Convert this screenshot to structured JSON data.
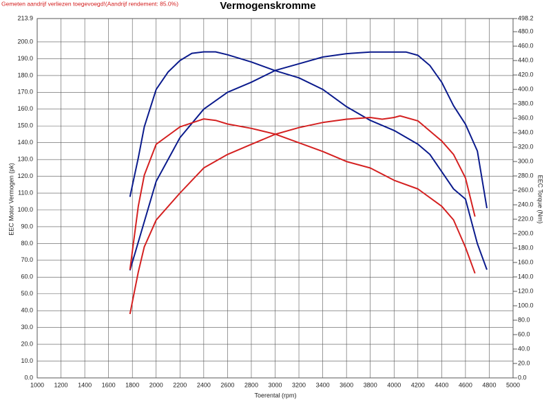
{
  "chart_data": {
    "type": "line",
    "title": "Vermogenskromme",
    "note": "Gemeten aandrijf verliezen toegevoegd!(Aandrijf rendement: 85.0%)",
    "xlabel": "Toerental (rpm)",
    "ylabel": "EEC Motor Vermogen (pk)",
    "y2label": "EEC Torque (Nm)",
    "xlim": [
      1000,
      5000
    ],
    "xticks": [
      1000,
      1200,
      1400,
      1600,
      1800,
      2000,
      2200,
      2400,
      2600,
      2800,
      3000,
      3200,
      3400,
      3600,
      3800,
      4000,
      4200,
      4400,
      4600,
      4800,
      5000
    ],
    "ylim": [
      0,
      213.9
    ],
    "yticks": [
      {
        "value": 0,
        "label": "0.0"
      },
      {
        "value": 10,
        "label": "10.0"
      },
      {
        "value": 20,
        "label": "20.0"
      },
      {
        "value": 30,
        "label": "30.0"
      },
      {
        "value": 40,
        "label": "40.0"
      },
      {
        "value": 50,
        "label": "50.0"
      },
      {
        "value": 60,
        "label": "60.0"
      },
      {
        "value": 70,
        "label": "70.0"
      },
      {
        "value": 80,
        "label": "80.0"
      },
      {
        "value": 90,
        "label": "90.0"
      },
      {
        "value": 100,
        "label": "100.0"
      },
      {
        "value": 110,
        "label": "110.0"
      },
      {
        "value": 120,
        "label": "120.0"
      },
      {
        "value": 130,
        "label": "130.0"
      },
      {
        "value": 140,
        "label": "140.0"
      },
      {
        "value": 150,
        "label": "150.0"
      },
      {
        "value": 160,
        "label": "160.0"
      },
      {
        "value": 170,
        "label": "170.0"
      },
      {
        "value": 180,
        "label": "180.0"
      },
      {
        "value": 190,
        "label": "190.0"
      },
      {
        "value": 200,
        "label": "200.0"
      },
      213.9
    ],
    "y2lim": [
      0,
      498.2
    ],
    "y2ticks": [
      {
        "value": 0,
        "label": "0.0"
      },
      {
        "value": 20,
        "label": "20.0"
      },
      {
        "value": 40,
        "label": "40.0"
      },
      {
        "value": 60,
        "label": "60.0"
      },
      {
        "value": 80,
        "label": "80.0"
      },
      {
        "value": 100,
        "label": "100.0"
      },
      {
        "value": 120,
        "label": "120.0"
      },
      {
        "value": 140,
        "label": "140.0"
      },
      {
        "value": 160,
        "label": "160.0"
      },
      {
        "value": 180,
        "label": "180.0"
      },
      {
        "value": 200,
        "label": "200.0"
      },
      {
        "value": 220,
        "label": "220.0"
      },
      {
        "value": 240,
        "label": "240.0"
      },
      {
        "value": 260,
        "label": "260.0"
      },
      {
        "value": 280,
        "label": "280.0"
      },
      {
        "value": 300,
        "label": "300.0"
      },
      {
        "value": 320,
        "label": "320.0"
      },
      {
        "value": 340,
        "label": "340.0"
      },
      {
        "value": 360,
        "label": "360.0"
      },
      {
        "value": 380,
        "label": "380.0"
      },
      {
        "value": 400,
        "label": "400.0"
      },
      {
        "value": 420,
        "label": "420.0"
      },
      {
        "value": 440,
        "label": "440.0"
      },
      {
        "value": 460,
        "label": "460.0"
      },
      {
        "value": 480,
        "label": "480.0"
      },
      498.2
    ],
    "grid": true,
    "series": [
      {
        "color": "#0a1a8c",
        "axis": "y",
        "x": [
          1780,
          2000,
          2200,
          2400,
          2600,
          2800,
          3000,
          3200,
          3400,
          3600,
          3800,
          4000,
          4100,
          4200,
          4300,
          4400,
          4500,
          4600,
          4700,
          4780
        ],
        "values": [
          64,
          117,
          143,
          160,
          170,
          176,
          183,
          187,
          191,
          193,
          194,
          194,
          194,
          192,
          186,
          176,
          162,
          151,
          135,
          101
        ]
      },
      {
        "color": "#0a1a8c",
        "axis": "y2",
        "x": [
          1780,
          1850,
          1900,
          2000,
          2100,
          2200,
          2300,
          2400,
          2500,
          2600,
          2800,
          3000,
          3200,
          3400,
          3600,
          3800,
          4000,
          4200,
          4300,
          4400,
          4500,
          4600,
          4700,
          4780
        ],
        "values": [
          251,
          305,
          348,
          400,
          424,
          440,
          450,
          452,
          452,
          448,
          438,
          426,
          416,
          400,
          376,
          357,
          343,
          324,
          310,
          286,
          262,
          248,
          186,
          150
        ]
      },
      {
        "color": "#d42020",
        "axis": "y",
        "x": [
          1780,
          1850,
          1900,
          2000,
          2200,
          2400,
          2600,
          2800,
          3000,
          3200,
          3400,
          3600,
          3800,
          3900,
          4000,
          4050,
          4200,
          4400,
          4500,
          4600,
          4680
        ],
        "values": [
          38,
          63,
          78,
          94,
          110,
          125,
          133,
          139,
          145,
          149,
          152,
          154,
          155,
          154,
          155,
          156,
          153,
          141,
          133,
          119,
          96
        ]
      },
      {
        "color": "#d42020",
        "axis": "y2",
        "x": [
          1780,
          1850,
          1900,
          2000,
          2200,
          2400,
          2500,
          2600,
          2800,
          3000,
          3200,
          3400,
          3600,
          3800,
          4000,
          4200,
          4400,
          4500,
          4600,
          4680
        ],
        "values": [
          150,
          238,
          281,
          324,
          348,
          359,
          357,
          352,
          346,
          338,
          326,
          314,
          300,
          291,
          274,
          262,
          238,
          219,
          181,
          145
        ]
      }
    ]
  }
}
